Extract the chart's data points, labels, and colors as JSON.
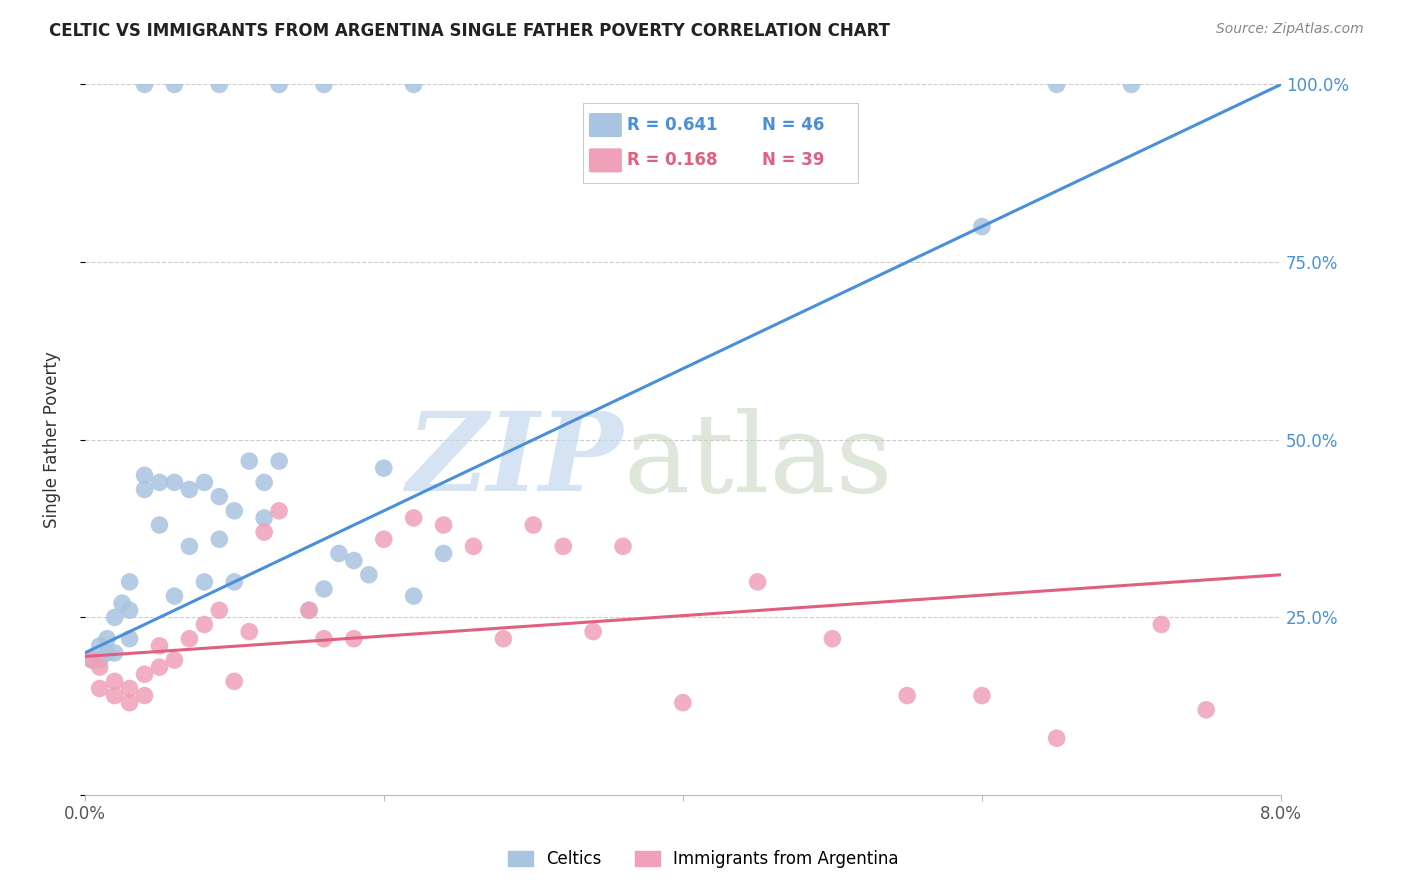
{
  "title": "CELTIC VS IMMIGRANTS FROM ARGENTINA SINGLE FATHER POVERTY CORRELATION CHART",
  "source": "Source: ZipAtlas.com",
  "ylabel": "Single Father Poverty",
  "xmin": 0.0,
  "xmax": 0.08,
  "ymin": 0.0,
  "ymax": 1.0,
  "yticks": [
    0.0,
    0.25,
    0.5,
    0.75,
    1.0
  ],
  "ytick_labels": [
    "",
    "25.0%",
    "50.0%",
    "75.0%",
    "100.0%"
  ],
  "xticks": [
    0.0,
    0.02,
    0.04,
    0.06,
    0.08
  ],
  "xtick_labels": [
    "0.0%",
    "",
    "",
    "",
    "8.0%"
  ],
  "celtics_R": 0.641,
  "celtics_N": 46,
  "argentina_R": 0.168,
  "argentina_N": 39,
  "celtics_color": "#a8c4e0",
  "celtics_line_color": "#4a90d9",
  "argentina_color": "#f0a0b8",
  "argentina_line_color": "#e06080",
  "celtics_x": [
    0.0005,
    0.001,
    0.001,
    0.0015,
    0.0015,
    0.002,
    0.002,
    0.0025,
    0.003,
    0.003,
    0.003,
    0.004,
    0.004,
    0.005,
    0.005,
    0.006,
    0.006,
    0.007,
    0.007,
    0.008,
    0.008,
    0.009,
    0.009,
    0.01,
    0.01,
    0.011,
    0.012,
    0.012,
    0.013,
    0.015,
    0.016,
    0.017,
    0.018,
    0.019,
    0.02,
    0.022,
    0.024,
    0.004,
    0.006,
    0.009,
    0.013,
    0.016,
    0.022,
    0.06,
    0.065,
    0.07
  ],
  "celtics_y": [
    0.19,
    0.19,
    0.21,
    0.2,
    0.22,
    0.2,
    0.25,
    0.27,
    0.22,
    0.26,
    0.3,
    0.45,
    0.43,
    0.44,
    0.38,
    0.44,
    0.28,
    0.43,
    0.35,
    0.44,
    0.3,
    0.36,
    0.42,
    0.4,
    0.3,
    0.47,
    0.39,
    0.44,
    0.47,
    0.26,
    0.29,
    0.34,
    0.33,
    0.31,
    0.46,
    0.28,
    0.34,
    1.0,
    1.0,
    1.0,
    1.0,
    1.0,
    1.0,
    0.8,
    1.0,
    1.0
  ],
  "argentina_x": [
    0.0005,
    0.001,
    0.001,
    0.002,
    0.002,
    0.003,
    0.003,
    0.004,
    0.004,
    0.005,
    0.005,
    0.006,
    0.007,
    0.008,
    0.009,
    0.01,
    0.011,
    0.012,
    0.013,
    0.015,
    0.016,
    0.018,
    0.02,
    0.022,
    0.024,
    0.026,
    0.028,
    0.03,
    0.032,
    0.034,
    0.036,
    0.04,
    0.045,
    0.05,
    0.055,
    0.06,
    0.065,
    0.072,
    0.075
  ],
  "argentina_y": [
    0.19,
    0.15,
    0.18,
    0.14,
    0.16,
    0.15,
    0.13,
    0.14,
    0.17,
    0.18,
    0.21,
    0.19,
    0.22,
    0.24,
    0.26,
    0.16,
    0.23,
    0.37,
    0.4,
    0.26,
    0.22,
    0.22,
    0.36,
    0.39,
    0.38,
    0.35,
    0.22,
    0.38,
    0.35,
    0.23,
    0.35,
    0.13,
    0.3,
    0.22,
    0.14,
    0.14,
    0.08,
    0.24,
    0.12
  ],
  "celtics_line_x0": 0.0,
  "celtics_line_y0": 0.2,
  "celtics_line_x1": 0.08,
  "celtics_line_y1": 1.0,
  "argentina_line_x0": 0.0,
  "argentina_line_y0": 0.195,
  "argentina_line_x1": 0.08,
  "argentina_line_y1": 0.31
}
